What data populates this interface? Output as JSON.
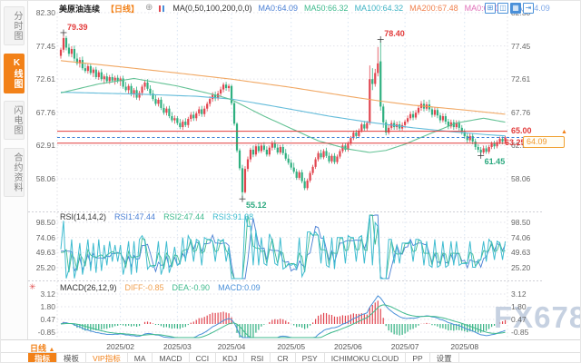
{
  "watermark": "FX678",
  "colors": {
    "up": "#e1454f",
    "down": "#2fb080",
    "accent_orange": "#f28118",
    "level_red": "#e23b3b",
    "current_blue": "#3b82d9",
    "ma50": "#5cbf8f",
    "ma100": "#5cb8d8",
    "ma200": "#f0a35c",
    "rsi1": "#4a7fd4",
    "rsi2": "#3fba8d",
    "rsi3": "#3fbcd0",
    "macd_diff_line": "#4a90d9",
    "macd_dea_line": "#3fba8d",
    "grid": "#e2e2ea",
    "month_grid": "#d8e4f2"
  },
  "sidebar": {
    "items": [
      {
        "label": "分时图",
        "active": false
      },
      {
        "label": "K线图",
        "active": true
      },
      {
        "label": "闪电图",
        "active": false
      },
      {
        "label": "合约资料",
        "active": false
      }
    ]
  },
  "header": {
    "symbol": "美原油连续",
    "period_tag": "【日线】",
    "ma_settings": "MA(0,50,100,200,0,0)",
    "ma_values": [
      {
        "label": "MA0:64.09",
        "color": "#4a7fd4"
      },
      {
        "label": "MA50:66.32",
        "color": "#3fba8d"
      },
      {
        "label": "MA100:64.32",
        "color": "#3fb3c4"
      },
      {
        "label": "MA200:67.48",
        "color": "#f0824f"
      },
      {
        "label": "MA0:64.09",
        "color": "#e070b8"
      },
      {
        "label": "MA0:64.09",
        "color": "#7fa8e8"
      }
    ],
    "window_icons": [
      {
        "name": "layout-grid-icon",
        "glyph": "⊞",
        "filled": false
      },
      {
        "name": "line-chart-icon",
        "glyph": "◫",
        "filled": false
      },
      {
        "name": "candlestick-chart-icon",
        "glyph": "▦",
        "filled": true
      },
      {
        "name": "side-panel-icon",
        "glyph": "⇥",
        "filled": false
      }
    ]
  },
  "rsi": {
    "title": "RSI(14,14,2)",
    "values": [
      {
        "label": "RSI1:47.44",
        "color": "#4a7fd4"
      },
      {
        "label": "RSI2:47.44",
        "color": "#3fba8d"
      },
      {
        "label": "RSI3:91.38",
        "color": "#3fbcd0"
      }
    ]
  },
  "macd": {
    "title": "MACD(26,12,9)",
    "values": [
      {
        "label": "DIFF:-0.85",
        "color": "#f0a050"
      },
      {
        "label": "DEA:-0.90",
        "color": "#3fba8d"
      },
      {
        "label": "MACD:0.09",
        "color": "#4a90d9"
      }
    ]
  },
  "footer": {
    "period_label": "日线",
    "period_arrow": "▲",
    "tabs": [
      {
        "label": "指标",
        "active": true,
        "vip": false
      },
      {
        "label": "模板",
        "active": false,
        "vip": false
      },
      {
        "label": "VIP指标",
        "active": false,
        "vip": true
      },
      {
        "label": "MA",
        "active": false,
        "vip": false
      },
      {
        "label": "MACD",
        "active": false,
        "vip": false
      },
      {
        "label": "CCI",
        "active": false,
        "vip": false
      },
      {
        "label": "KDJ",
        "active": false,
        "vip": false
      },
      {
        "label": "RSI",
        "active": false,
        "vip": false
      },
      {
        "label": "CR",
        "active": false,
        "vip": false
      },
      {
        "label": "PSY",
        "active": false,
        "vip": false
      },
      {
        "label": "ICHIMOKU CLOUD",
        "active": false,
        "vip": false
      },
      {
        "label": "PP",
        "active": false,
        "vip": false
      },
      {
        "label": "设置",
        "active": false,
        "vip": false
      }
    ]
  },
  "chart_data": {
    "type": "candlestick",
    "symbol": "美原油连续",
    "period": "日线",
    "x_axis": {
      "month_labels": [
        "2025/02",
        "2025/03",
        "2025/04",
        "2025/05",
        "2025/06",
        "2025/07",
        "2025/08"
      ],
      "month_start_indices": [
        22,
        43,
        63,
        85,
        106,
        127,
        149
      ]
    },
    "y_axis": {
      "tick_labels": [
        "82.30",
        "77.45",
        "72.61",
        "67.76",
        "62.91",
        "58.06"
      ],
      "range": [
        55.0,
        82.3
      ]
    },
    "rsi_axis": {
      "tick_labels": [
        "98.50",
        "74.06",
        "49.63",
        "25.20"
      ]
    },
    "macd_axis": {
      "tick_labels": [
        "3.12",
        "1.80",
        "0.47",
        "-0.85"
      ]
    },
    "levels": [
      {
        "label": "65.00",
        "value": 65.0
      },
      {
        "label": "63.25",
        "value": 63.25
      }
    ],
    "current_price": {
      "label": "64.09",
      "value": 64.09
    },
    "annotations": [
      {
        "index": 1,
        "label": "79.39",
        "value": 79.39,
        "side": "high",
        "color": "#e23b3b"
      },
      {
        "index": 118,
        "label": "78.40",
        "value": 78.4,
        "side": "high",
        "color": "#e23b3b"
      },
      {
        "index": 67,
        "label": "55.12",
        "value": 55.12,
        "side": "low",
        "color": "#2aa87e"
      },
      {
        "index": 155,
        "label": "61.45",
        "value": 61.45,
        "side": "low",
        "color": "#2aa87e"
      }
    ],
    "ma_lines": [
      {
        "name": "MA200",
        "color": "#f0a35c",
        "anchors": [
          [
            0,
            75.3
          ],
          [
            22,
            74.4
          ],
          [
            43,
            73.5
          ],
          [
            63,
            72.6
          ],
          [
            85,
            71.4
          ],
          [
            106,
            70.1
          ],
          [
            118,
            69.4
          ],
          [
            130,
            68.8
          ],
          [
            149,
            68.1
          ],
          [
            164,
            67.48
          ]
        ]
      },
      {
        "name": "MA100",
        "color": "#5cb8d8",
        "anchors": [
          [
            0,
            70.7
          ],
          [
            30,
            70.4
          ],
          [
            50,
            70.1
          ],
          [
            63,
            69.7
          ],
          [
            75,
            68.9
          ],
          [
            85,
            68.2
          ],
          [
            99,
            67.2
          ],
          [
            114,
            66.3
          ],
          [
            130,
            65.5
          ],
          [
            145,
            64.9
          ],
          [
            157,
            64.5
          ],
          [
            164,
            64.32
          ]
        ]
      },
      {
        "name": "MA50",
        "color": "#5cbf8f",
        "anchors": [
          [
            0,
            70.6
          ],
          [
            14,
            71.9
          ],
          [
            27,
            72.7
          ],
          [
            43,
            71.6
          ],
          [
            58,
            70.2
          ],
          [
            63,
            69.6
          ],
          [
            75,
            67.2
          ],
          [
            85,
            65.4
          ],
          [
            95,
            63.6
          ],
          [
            106,
            62.4
          ],
          [
            114,
            61.9
          ],
          [
            120,
            62.2
          ],
          [
            127,
            63.1
          ],
          [
            136,
            64.6
          ],
          [
            146,
            66.2
          ],
          [
            156,
            66.9
          ],
          [
            164,
            66.32
          ]
        ]
      }
    ],
    "candles": [
      [
        76.0,
        77.2,
        75.6,
        76.9
      ],
      [
        76.9,
        79.39,
        76.5,
        78.6
      ],
      [
        78.6,
        78.9,
        76.8,
        77.2
      ],
      [
        77.2,
        77.8,
        75.9,
        76.3
      ],
      [
        76.3,
        77.4,
        75.8,
        77.0
      ],
      [
        77.0,
        77.5,
        75.2,
        75.6
      ],
      [
        75.6,
        76.4,
        74.6,
        74.9
      ],
      [
        74.9,
        75.8,
        74.3,
        75.4
      ],
      [
        75.4,
        75.9,
        73.9,
        74.2
      ],
      [
        74.2,
        75.0,
        73.5,
        73.8
      ],
      [
        73.8,
        74.8,
        73.4,
        74.5
      ],
      [
        74.5,
        74.9,
        73.2,
        73.5
      ],
      [
        73.5,
        74.3,
        72.9,
        74.0
      ],
      [
        74.0,
        74.4,
        72.6,
        72.9
      ],
      [
        72.9,
        73.9,
        72.5,
        73.6
      ],
      [
        73.6,
        74.1,
        72.3,
        72.6
      ],
      [
        72.6,
        73.3,
        71.9,
        73.0
      ],
      [
        73.0,
        73.5,
        72.0,
        72.3
      ],
      [
        72.3,
        73.2,
        71.9,
        72.9
      ],
      [
        72.9,
        73.4,
        72.1,
        72.4
      ],
      [
        72.4,
        73.1,
        71.8,
        72.8
      ],
      [
        72.8,
        73.2,
        72.0,
        72.3
      ],
      [
        72.3,
        73.0,
        71.6,
        72.7
      ],
      [
        72.7,
        73.1,
        71.2,
        71.5
      ],
      [
        71.5,
        72.2,
        70.7,
        71.0
      ],
      [
        71.0,
        71.9,
        70.5,
        71.6
      ],
      [
        71.6,
        72.0,
        70.1,
        70.4
      ],
      [
        70.4,
        71.3,
        69.9,
        71.0
      ],
      [
        71.0,
        71.5,
        69.6,
        69.9
      ],
      [
        69.9,
        70.9,
        69.5,
        70.6
      ],
      [
        70.6,
        71.8,
        70.2,
        71.5
      ],
      [
        71.5,
        72.4,
        71.0,
        72.1
      ],
      [
        72.1,
        72.6,
        70.9,
        71.2
      ],
      [
        71.2,
        71.7,
        70.2,
        70.5
      ],
      [
        70.5,
        71.0,
        69.4,
        69.7
      ],
      [
        69.7,
        70.3,
        68.7,
        69.0
      ],
      [
        69.0,
        69.9,
        68.6,
        69.6
      ],
      [
        69.6,
        70.0,
        68.1,
        68.4
      ],
      [
        68.4,
        69.0,
        67.4,
        67.7
      ],
      [
        67.7,
        68.6,
        67.3,
        68.3
      ],
      [
        68.3,
        68.7,
        66.9,
        67.2
      ],
      [
        67.2,
        67.8,
        66.3,
        66.6
      ],
      [
        66.6,
        67.3,
        66.1,
        66.9
      ],
      [
        66.9,
        67.2,
        65.9,
        66.2
      ],
      [
        66.2,
        66.8,
        65.3,
        65.6
      ],
      [
        65.6,
        66.7,
        65.2,
        66.4
      ],
      [
        66.4,
        66.9,
        65.6,
        65.9
      ],
      [
        65.9,
        67.1,
        65.5,
        66.8
      ],
      [
        66.8,
        67.8,
        66.4,
        67.4
      ],
      [
        67.4,
        67.9,
        66.5,
        66.9
      ],
      [
        66.9,
        67.9,
        66.5,
        67.6
      ],
      [
        67.6,
        68.6,
        67.2,
        68.2
      ],
      [
        68.2,
        68.7,
        67.1,
        67.5
      ],
      [
        67.5,
        68.7,
        67.1,
        68.3
      ],
      [
        68.3,
        69.3,
        67.9,
        69.0
      ],
      [
        69.0,
        70.1,
        68.6,
        69.7
      ],
      [
        69.7,
        70.7,
        69.3,
        70.3
      ],
      [
        70.3,
        70.8,
        69.4,
        69.8
      ],
      [
        69.8,
        70.9,
        69.5,
        70.5
      ],
      [
        70.5,
        71.5,
        70.1,
        71.1
      ],
      [
        71.1,
        72.1,
        70.7,
        71.8
      ],
      [
        71.8,
        72.2,
        70.9,
        71.3
      ],
      [
        71.3,
        71.9,
        70.8,
        71.6
      ],
      [
        71.6,
        71.8,
        68.8,
        69.1
      ],
      [
        69.1,
        69.3,
        65.8,
        66.1
      ],
      [
        66.1,
        66.3,
        61.9,
        62.2
      ],
      [
        62.2,
        62.5,
        59.3,
        59.6
      ],
      [
        59.6,
        60.1,
        55.12,
        56.1
      ],
      [
        56.1,
        59.9,
        55.9,
        59.5
      ],
      [
        59.5,
        61.3,
        59.1,
        60.9
      ],
      [
        60.9,
        62.6,
        60.5,
        62.3
      ],
      [
        62.3,
        62.9,
        61.2,
        61.6
      ],
      [
        61.6,
        63.1,
        61.3,
        62.8
      ],
      [
        62.8,
        63.3,
        61.8,
        62.1
      ],
      [
        62.1,
        63.2,
        61.8,
        62.9
      ],
      [
        62.9,
        63.4,
        62.0,
        62.3
      ],
      [
        62.3,
        62.8,
        61.3,
        61.6
      ],
      [
        61.6,
        62.9,
        61.3,
        62.6
      ],
      [
        62.6,
        63.6,
        62.2,
        63.2
      ],
      [
        63.2,
        63.7,
        62.3,
        62.6
      ],
      [
        62.6,
        63.1,
        61.6,
        61.9
      ],
      [
        61.9,
        63.0,
        61.6,
        62.7
      ],
      [
        62.7,
        63.1,
        61.5,
        61.8
      ],
      [
        61.8,
        62.4,
        60.7,
        61.0
      ],
      [
        61.0,
        61.6,
        60.1,
        60.4
      ],
      [
        60.4,
        60.9,
        59.4,
        59.7
      ],
      [
        59.7,
        60.4,
        58.8,
        59.1
      ],
      [
        59.1,
        59.5,
        57.9,
        58.2
      ],
      [
        58.2,
        59.3,
        57.9,
        59.0
      ],
      [
        59.0,
        59.4,
        57.4,
        57.7
      ],
      [
        57.7,
        58.2,
        56.4,
        56.7
      ],
      [
        56.7,
        58.1,
        56.4,
        57.8
      ],
      [
        57.8,
        59.2,
        57.5,
        58.9
      ],
      [
        58.9,
        60.1,
        58.6,
        59.8
      ],
      [
        59.8,
        61.2,
        59.5,
        60.9
      ],
      [
        60.9,
        62.1,
        60.6,
        61.8
      ],
      [
        61.8,
        62.3,
        60.9,
        61.2
      ],
      [
        61.2,
        62.4,
        60.9,
        62.1
      ],
      [
        62.1,
        62.6,
        61.1,
        61.4
      ],
      [
        61.4,
        61.9,
        60.3,
        60.6
      ],
      [
        60.6,
        61.7,
        60.3,
        61.4
      ],
      [
        61.4,
        61.8,
        60.2,
        60.5
      ],
      [
        60.5,
        61.6,
        60.2,
        61.3
      ],
      [
        61.3,
        62.4,
        61.0,
        62.1
      ],
      [
        62.1,
        63.2,
        61.8,
        62.9
      ],
      [
        62.9,
        63.3,
        62.0,
        62.3
      ],
      [
        62.3,
        63.5,
        62.0,
        63.2
      ],
      [
        63.2,
        64.3,
        62.9,
        64.0
      ],
      [
        64.0,
        65.1,
        63.7,
        64.8
      ],
      [
        64.8,
        65.2,
        63.9,
        64.3
      ],
      [
        64.3,
        65.4,
        64.0,
        65.1
      ],
      [
        65.1,
        66.3,
        64.8,
        66.0
      ],
      [
        66.0,
        66.5,
        65.1,
        65.4
      ],
      [
        65.4,
        66.5,
        65.1,
        66.2
      ],
      [
        66.2,
        74.6,
        65.9,
        72.6
      ],
      [
        72.6,
        74.2,
        71.0,
        71.9
      ],
      [
        71.9,
        74.1,
        71.5,
        73.5
      ],
      [
        73.5,
        77.3,
        73.0,
        74.9
      ],
      [
        75.2,
        78.4,
        68.0,
        68.6
      ],
      [
        68.6,
        69.0,
        65.5,
        66.3
      ],
      [
        66.3,
        66.7,
        64.4,
        64.8
      ],
      [
        64.8,
        65.9,
        64.5,
        65.5
      ],
      [
        65.5,
        66.6,
        65.2,
        66.2
      ],
      [
        66.2,
        66.6,
        65.2,
        65.6
      ],
      [
        65.6,
        66.4,
        65.2,
        66.0
      ],
      [
        66.0,
        66.5,
        65.1,
        65.4
      ],
      [
        65.4,
        66.3,
        65.1,
        65.9
      ],
      [
        65.9,
        66.7,
        65.5,
        66.4
      ],
      [
        66.4,
        67.3,
        66.1,
        66.9
      ],
      [
        66.9,
        67.9,
        66.6,
        67.5
      ],
      [
        67.5,
        68.0,
        66.6,
        67.0
      ],
      [
        67.0,
        68.1,
        66.7,
        67.7
      ],
      [
        67.7,
        68.8,
        67.4,
        68.4
      ],
      [
        68.4,
        69.4,
        68.0,
        69.0
      ],
      [
        69.0,
        69.6,
        67.9,
        68.3
      ],
      [
        68.3,
        69.3,
        68.0,
        68.9
      ],
      [
        68.9,
        69.6,
        67.8,
        68.2
      ],
      [
        68.2,
        68.6,
        67.0,
        67.4
      ],
      [
        67.4,
        68.5,
        67.1,
        68.1
      ],
      [
        68.1,
        68.5,
        66.9,
        67.3
      ],
      [
        67.3,
        67.7,
        66.2,
        66.6
      ],
      [
        66.6,
        67.6,
        66.3,
        67.2
      ],
      [
        67.2,
        67.6,
        66.0,
        66.4
      ],
      [
        66.4,
        66.8,
        65.3,
        65.7
      ],
      [
        65.7,
        66.7,
        65.4,
        66.3
      ],
      [
        66.3,
        66.7,
        65.2,
        65.6
      ],
      [
        65.6,
        66.6,
        65.3,
        66.2
      ],
      [
        66.2,
        66.6,
        65.1,
        65.5
      ],
      [
        65.5,
        65.9,
        64.5,
        64.9
      ],
      [
        64.9,
        65.3,
        63.9,
        64.3
      ],
      [
        64.3,
        64.7,
        63.3,
        63.7
      ],
      [
        63.7,
        64.7,
        63.4,
        64.3
      ],
      [
        64.3,
        64.7,
        63.1,
        63.5
      ],
      [
        63.5,
        63.9,
        62.3,
        62.7
      ],
      [
        62.7,
        63.1,
        61.9,
        62.3
      ],
      [
        62.3,
        62.7,
        61.45,
        61.9
      ],
      [
        61.9,
        62.9,
        61.6,
        62.5
      ],
      [
        62.5,
        62.9,
        61.7,
        62.0
      ],
      [
        62.0,
        63.0,
        61.7,
        62.7
      ],
      [
        62.7,
        63.5,
        62.4,
        63.2
      ],
      [
        63.2,
        63.6,
        62.4,
        62.8
      ],
      [
        62.8,
        63.7,
        62.5,
        63.4
      ],
      [
        63.4,
        64.2,
        63.1,
        63.9
      ],
      [
        63.9,
        64.2,
        63.1,
        63.5
      ],
      [
        63.5,
        64.3,
        63.2,
        64.09
      ]
    ]
  }
}
